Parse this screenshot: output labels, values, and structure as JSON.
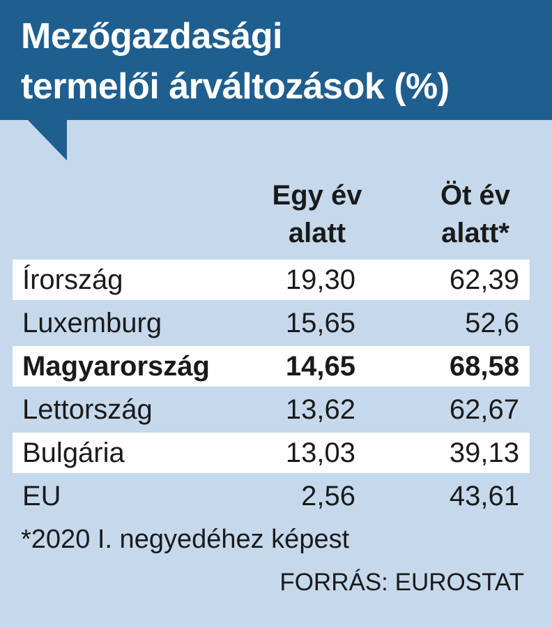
{
  "header": {
    "title_lines": [
      "Mezőgazdasági",
      "termelői árváltozások (%)"
    ]
  },
  "table": {
    "columns": [
      [
        "Egy év",
        "alatt"
      ],
      [
        "Öt év",
        "alatt*"
      ]
    ],
    "rows": [
      [
        "Írország",
        "19,30",
        "62,39"
      ],
      [
        "Luxemburg",
        "15,65",
        "52,6"
      ],
      [
        "Magyarország",
        "14,65",
        "68,58"
      ],
      [
        "Lettország",
        "13,62",
        "62,67"
      ],
      [
        "Bulgária",
        "13,03",
        "39,13"
      ],
      [
        "EU",
        "2,56",
        "43,61"
      ]
    ]
  },
  "footnote": "*2020 I. negyedéhez képest",
  "source": "FORRÁS: EUROSTAT"
}
